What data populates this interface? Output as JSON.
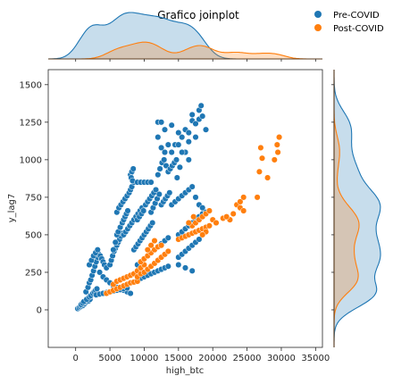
{
  "chart_data": {
    "type": "scatter",
    "title": "Grafico joinplot",
    "xlabel": "high_btc",
    "ylabel": "y_lag7",
    "xlim": [
      -4000,
      36000
    ],
    "ylim": [
      -250,
      1600
    ],
    "x_ticks": [
      0,
      5000,
      10000,
      15000,
      20000,
      25000,
      30000,
      35000
    ],
    "y_ticks": [
      0,
      250,
      500,
      750,
      1000,
      1250,
      1500
    ],
    "legend": {
      "position": "top-right"
    },
    "marginals": {
      "top": "kde",
      "right": "kde"
    },
    "series": [
      {
        "name": "Pre-COVID",
        "color": "#1f77b4",
        "points": [
          [
            300,
            8
          ],
          [
            500,
            15
          ],
          [
            700,
            20
          ],
          [
            900,
            25
          ],
          [
            1100,
            30
          ],
          [
            1300,
            40
          ],
          [
            1500,
            50
          ],
          [
            1700,
            55
          ],
          [
            1900,
            60
          ],
          [
            2100,
            70
          ],
          [
            800,
            35
          ],
          [
            1000,
            45
          ],
          [
            1200,
            55
          ],
          [
            1600,
            70
          ],
          [
            2000,
            85
          ],
          [
            2200,
            95
          ],
          [
            2500,
            110
          ],
          [
            2700,
            120
          ],
          [
            2900,
            130
          ],
          [
            3100,
            140
          ],
          [
            1500,
            120
          ],
          [
            1800,
            150
          ],
          [
            2000,
            180
          ],
          [
            2200,
            200
          ],
          [
            2400,
            230
          ],
          [
            2600,
            260
          ],
          [
            2800,
            290
          ],
          [
            3000,
            320
          ],
          [
            3200,
            350
          ],
          [
            3400,
            370
          ],
          [
            2000,
            300
          ],
          [
            2300,
            330
          ],
          [
            2600,
            360
          ],
          [
            2900,
            380
          ],
          [
            3200,
            400
          ],
          [
            3600,
            360
          ],
          [
            3800,
            340
          ],
          [
            4000,
            320
          ],
          [
            4200,
            300
          ],
          [
            4500,
            280
          ],
          [
            3500,
            250
          ],
          [
            4000,
            220
          ],
          [
            4500,
            200
          ],
          [
            5000,
            180
          ],
          [
            5500,
            160
          ],
          [
            6000,
            150
          ],
          [
            6500,
            140
          ],
          [
            7000,
            130
          ],
          [
            7500,
            120
          ],
          [
            8000,
            110
          ],
          [
            3000,
            100
          ],
          [
            3500,
            105
          ],
          [
            4000,
            110
          ],
          [
            4500,
            115
          ],
          [
            5000,
            120
          ],
          [
            5500,
            125
          ],
          [
            6000,
            130
          ],
          [
            6500,
            135
          ],
          [
            7000,
            140
          ],
          [
            7500,
            145
          ],
          [
            5000,
            300
          ],
          [
            5200,
            330
          ],
          [
            5400,
            360
          ],
          [
            5600,
            390
          ],
          [
            5800,
            410
          ],
          [
            6000,
            430
          ],
          [
            6200,
            450
          ],
          [
            6400,
            470
          ],
          [
            6600,
            490
          ],
          [
            6800,
            510
          ],
          [
            5500,
            400
          ],
          [
            5800,
            450
          ],
          [
            6000,
            500
          ],
          [
            6200,
            520
          ],
          [
            6500,
            550
          ],
          [
            6800,
            580
          ],
          [
            7000,
            600
          ],
          [
            7200,
            620
          ],
          [
            7400,
            640
          ],
          [
            7600,
            660
          ],
          [
            6000,
            650
          ],
          [
            6300,
            680
          ],
          [
            6600,
            700
          ],
          [
            6900,
            720
          ],
          [
            7200,
            740
          ],
          [
            7500,
            760
          ],
          [
            7800,
            780
          ],
          [
            8000,
            800
          ],
          [
            8200,
            820
          ],
          [
            8500,
            850
          ],
          [
            7000,
            500
          ],
          [
            7300,
            520
          ],
          [
            7600,
            540
          ],
          [
            7900,
            560
          ],
          [
            8200,
            580
          ],
          [
            8500,
            600
          ],
          [
            8800,
            620
          ],
          [
            9100,
            640
          ],
          [
            9400,
            660
          ],
          [
            9700,
            680
          ],
          [
            8000,
            900
          ],
          [
            8200,
            920
          ],
          [
            8400,
            940
          ],
          [
            8100,
            880
          ],
          [
            8300,
            860
          ],
          [
            9000,
            850
          ],
          [
            9500,
            850
          ],
          [
            10000,
            850
          ],
          [
            10500,
            850
          ],
          [
            11000,
            850
          ],
          [
            8500,
            400
          ],
          [
            8800,
            420
          ],
          [
            9100,
            440
          ],
          [
            9400,
            460
          ],
          [
            9700,
            480
          ],
          [
            10000,
            500
          ],
          [
            10300,
            520
          ],
          [
            10600,
            540
          ],
          [
            10900,
            560
          ],
          [
            11200,
            580
          ],
          [
            9000,
            300
          ],
          [
            9500,
            320
          ],
          [
            10000,
            340
          ],
          [
            10500,
            360
          ],
          [
            11000,
            380
          ],
          [
            11500,
            400
          ],
          [
            12000,
            420
          ],
          [
            12500,
            440
          ],
          [
            13000,
            460
          ],
          [
            13500,
            480
          ],
          [
            9000,
            200
          ],
          [
            9500,
            210
          ],
          [
            10000,
            220
          ],
          [
            10500,
            230
          ],
          [
            11000,
            240
          ],
          [
            11500,
            250
          ],
          [
            12000,
            260
          ],
          [
            12500,
            270
          ],
          [
            13000,
            280
          ],
          [
            13500,
            290
          ],
          [
            9000,
            600
          ],
          [
            9300,
            620
          ],
          [
            9600,
            640
          ],
          [
            9900,
            660
          ],
          [
            10200,
            700
          ],
          [
            10500,
            720
          ],
          [
            10800,
            740
          ],
          [
            11100,
            760
          ],
          [
            11400,
            780
          ],
          [
            11700,
            800
          ],
          [
            11000,
            650
          ],
          [
            11300,
            680
          ],
          [
            11600,
            710
          ],
          [
            11900,
            740
          ],
          [
            12200,
            770
          ],
          [
            12500,
            700
          ],
          [
            12800,
            720
          ],
          [
            13100,
            740
          ],
          [
            13400,
            760
          ],
          [
            13700,
            780
          ],
          [
            12000,
            900
          ],
          [
            12300,
            940
          ],
          [
            12600,
            980
          ],
          [
            12900,
            1000
          ],
          [
            13200,
            960
          ],
          [
            13500,
            920
          ],
          [
            13800,
            940
          ],
          [
            14100,
            960
          ],
          [
            14400,
            980
          ],
          [
            14700,
            1000
          ],
          [
            12000,
            1150
          ],
          [
            12500,
            1080
          ],
          [
            13000,
            1050
          ],
          [
            13500,
            1100
          ],
          [
            14000,
            1050
          ],
          [
            14500,
            1100
          ],
          [
            15000,
            1100
          ],
          [
            15500,
            1150
          ],
          [
            16000,
            1050
          ],
          [
            16500,
            1000
          ],
          [
            14000,
            700
          ],
          [
            14500,
            720
          ],
          [
            15000,
            740
          ],
          [
            15500,
            760
          ],
          [
            16000,
            780
          ],
          [
            16500,
            800
          ],
          [
            17000,
            820
          ],
          [
            17500,
            750
          ],
          [
            18000,
            700
          ],
          [
            18500,
            680
          ],
          [
            15000,
            500
          ],
          [
            15500,
            520
          ],
          [
            16000,
            540
          ],
          [
            16500,
            560
          ],
          [
            17000,
            580
          ],
          [
            17500,
            600
          ],
          [
            18000,
            620
          ],
          [
            18500,
            640
          ],
          [
            19000,
            650
          ],
          [
            19500,
            660
          ],
          [
            15000,
            350
          ],
          [
            15500,
            370
          ],
          [
            16000,
            390
          ],
          [
            16500,
            410
          ],
          [
            17000,
            430
          ],
          [
            17500,
            450
          ],
          [
            18000,
            470
          ],
          [
            15000,
            300
          ],
          [
            16000,
            280
          ],
          [
            17000,
            260
          ],
          [
            12000,
            1250
          ],
          [
            14000,
            1230
          ],
          [
            15000,
            1180
          ],
          [
            16000,
            1200
          ],
          [
            16500,
            1180
          ],
          [
            17000,
            1260
          ],
          [
            17500,
            1240
          ],
          [
            17000,
            1300
          ],
          [
            18000,
            1330
          ],
          [
            18300,
            1360
          ],
          [
            18000,
            1270
          ],
          [
            17500,
            1150
          ],
          [
            16500,
            1120
          ],
          [
            15500,
            1050
          ],
          [
            15200,
            950
          ],
          [
            14800,
            880
          ],
          [
            13000,
            1200
          ],
          [
            12500,
            1250
          ],
          [
            18500,
            1290
          ],
          [
            19000,
            1200
          ]
        ]
      },
      {
        "name": "Post-COVID",
        "color": "#ff7f0e",
        "points": [
          [
            4500,
            110
          ],
          [
            5000,
            120
          ],
          [
            5500,
            130
          ],
          [
            6000,
            140
          ],
          [
            6500,
            150
          ],
          [
            7000,
            160
          ],
          [
            7500,
            170
          ],
          [
            8000,
            180
          ],
          [
            8500,
            185
          ],
          [
            9000,
            190
          ],
          [
            5500,
            170
          ],
          [
            6000,
            190
          ],
          [
            6500,
            200
          ],
          [
            7000,
            210
          ],
          [
            7500,
            220
          ],
          [
            8000,
            230
          ],
          [
            8500,
            240
          ],
          [
            9000,
            260
          ],
          [
            9500,
            280
          ],
          [
            10000,
            300
          ],
          [
            9500,
            320
          ],
          [
            10000,
            340
          ],
          [
            10500,
            360
          ],
          [
            11000,
            380
          ],
          [
            11500,
            400
          ],
          [
            12000,
            420
          ],
          [
            12500,
            430
          ],
          [
            10500,
            400
          ],
          [
            11000,
            430
          ],
          [
            11500,
            460
          ],
          [
            9000,
            220
          ],
          [
            9500,
            240
          ],
          [
            10000,
            250
          ],
          [
            10500,
            270
          ],
          [
            11000,
            290
          ],
          [
            11500,
            310
          ],
          [
            12000,
            330
          ],
          [
            12500,
            350
          ],
          [
            13000,
            370
          ],
          [
            13500,
            390
          ],
          [
            15000,
            470
          ],
          [
            15500,
            480
          ],
          [
            16000,
            490
          ],
          [
            16500,
            500
          ],
          [
            17000,
            510
          ],
          [
            17500,
            520
          ],
          [
            18000,
            530
          ],
          [
            18500,
            540
          ],
          [
            19000,
            550
          ],
          [
            19500,
            560
          ],
          [
            17000,
            560
          ],
          [
            17500,
            580
          ],
          [
            18000,
            600
          ],
          [
            18500,
            620
          ],
          [
            19000,
            640
          ],
          [
            19500,
            660
          ],
          [
            20000,
            600
          ],
          [
            20500,
            580
          ],
          [
            19000,
            520
          ],
          [
            18500,
            500
          ],
          [
            21500,
            610
          ],
          [
            22500,
            600
          ],
          [
            23500,
            700
          ],
          [
            24000,
            720
          ],
          [
            24500,
            750
          ],
          [
            24000,
            680
          ],
          [
            26500,
            750
          ],
          [
            27000,
            1080
          ],
          [
            27200,
            1010
          ],
          [
            28000,
            880
          ],
          [
            29000,
            1000
          ],
          [
            29500,
            1050
          ],
          [
            29400,
            1100
          ],
          [
            29700,
            1150
          ],
          [
            26800,
            920
          ],
          [
            24500,
            660
          ],
          [
            23000,
            640
          ],
          [
            22000,
            620
          ],
          [
            16500,
            580
          ],
          [
            17200,
            620
          ]
        ]
      }
    ]
  }
}
